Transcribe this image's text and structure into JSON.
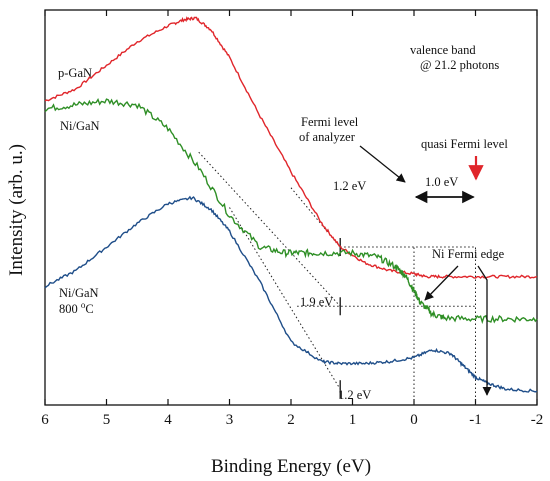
{
  "chart_data": {
    "type": "line",
    "title": "",
    "xlabel": "Binding Energy (eV)",
    "ylabel": "Intensity (arb. u.)",
    "xlim": [
      6,
      -2
    ],
    "x_reversed": true,
    "ylim": [
      0,
      100
    ],
    "y_ticks_shown": false,
    "x_ticks": [
      6,
      5,
      4,
      3,
      2,
      1,
      0,
      -1,
      -2
    ],
    "x_tick_labels": [
      "6",
      "5",
      "4",
      "3",
      "2",
      "1",
      "0",
      "-1",
      "-2"
    ],
    "grid": false,
    "legend": "none",
    "series": [
      {
        "name": "p-GaN",
        "color": "#e0262b",
        "x": [
          6.0,
          5.5,
          5.0,
          4.5,
          4.0,
          3.75,
          3.55,
          3.3,
          3.0,
          2.5,
          2.0,
          1.5,
          1.2,
          0.8,
          0.4,
          0.0,
          -0.2,
          -0.5,
          -1.0,
          -1.5,
          -2.0
        ],
        "y": [
          77,
          80,
          86,
          92,
          96,
          97.5,
          98,
          95,
          88,
          73,
          59,
          46,
          40,
          36,
          34,
          33.2,
          32.5,
          32.5,
          32.5,
          32.5,
          32.5
        ]
      },
      {
        "name": "Ni/GaN",
        "color": "#2f8f26",
        "x": [
          6.0,
          5.5,
          5.0,
          4.5,
          4.0,
          3.5,
          3.0,
          2.5,
          2.1,
          1.8,
          1.5,
          1.0,
          0.6,
          0.3,
          0.15,
          0.0,
          -0.1,
          -0.3,
          -0.5,
          -1.0,
          -1.5,
          -2.0
        ],
        "y": [
          75,
          76,
          77,
          76,
          70,
          60,
          48,
          40,
          38.5,
          38.5,
          38.5,
          38.5,
          37.5,
          35,
          33,
          29,
          26,
          23,
          22,
          21.8,
          21.8,
          21.8
        ]
      },
      {
        "name": "Ni/GaN 800 °C",
        "color": "#1f4e89",
        "x": [
          6.0,
          5.5,
          5.0,
          4.5,
          4.0,
          3.6,
          3.3,
          3.0,
          2.5,
          2.0,
          1.5,
          1.2,
          0.8,
          0.4,
          0.0,
          -0.3,
          -0.6,
          -0.8,
          -1.0,
          -1.2,
          -1.5,
          -2.0
        ],
        "y": [
          30,
          34,
          40,
          46,
          51,
          52.5,
          49.5,
          44,
          31,
          16,
          11,
          10.5,
          10.5,
          11,
          12,
          14,
          13,
          10,
          7,
          5.5,
          4,
          3.5
        ]
      }
    ],
    "dotted_extrapolations": [
      {
        "from": [
          3.5,
          64
        ],
        "to": [
          1.2,
          25
        ],
        "label": "1.9 eV"
      },
      {
        "from": [
          3.0,
          50
        ],
        "to": [
          1.2,
          4
        ],
        "label": "1.2 eV"
      },
      {
        "from": [
          2.0,
          55
        ],
        "to": [
          1.2,
          40
        ],
        "label": "1.2 eV"
      }
    ],
    "horizontal_dotted": [
      {
        "x_from": 1.2,
        "x_to": -1.0,
        "y": 40
      },
      {
        "x_from": 1.9,
        "x_to": -1.0,
        "y": 25
      }
    ],
    "vertical_dotted": [
      {
        "x": 0.0,
        "y_from": 0,
        "y_to": 40
      },
      {
        "x": -1.0,
        "y_from": 0,
        "y_to": 40
      }
    ],
    "annotations": {
      "valence_band": [
        "valence band",
        "@ 21.2 photons"
      ],
      "fermi_analyzer": [
        "Fermi level",
        "of analyzer"
      ],
      "quasi_fermi": "quasi Fermi level",
      "ni_fermi_edge": "Ni Fermi edge",
      "gap_1_0": "1.0 eV",
      "gap_p_gan": "1.2 eV",
      "gap_ni": "1.9 eV",
      "gap_ni800": "1.2 eV",
      "label_pgan": "p-GaN",
      "label_ni": "Ni/GaN",
      "label_ni800_line1": "Ni/GaN",
      "label_ni800_line2": "800 °C"
    },
    "quasi_fermi_arrow_color": "#e0262b"
  }
}
